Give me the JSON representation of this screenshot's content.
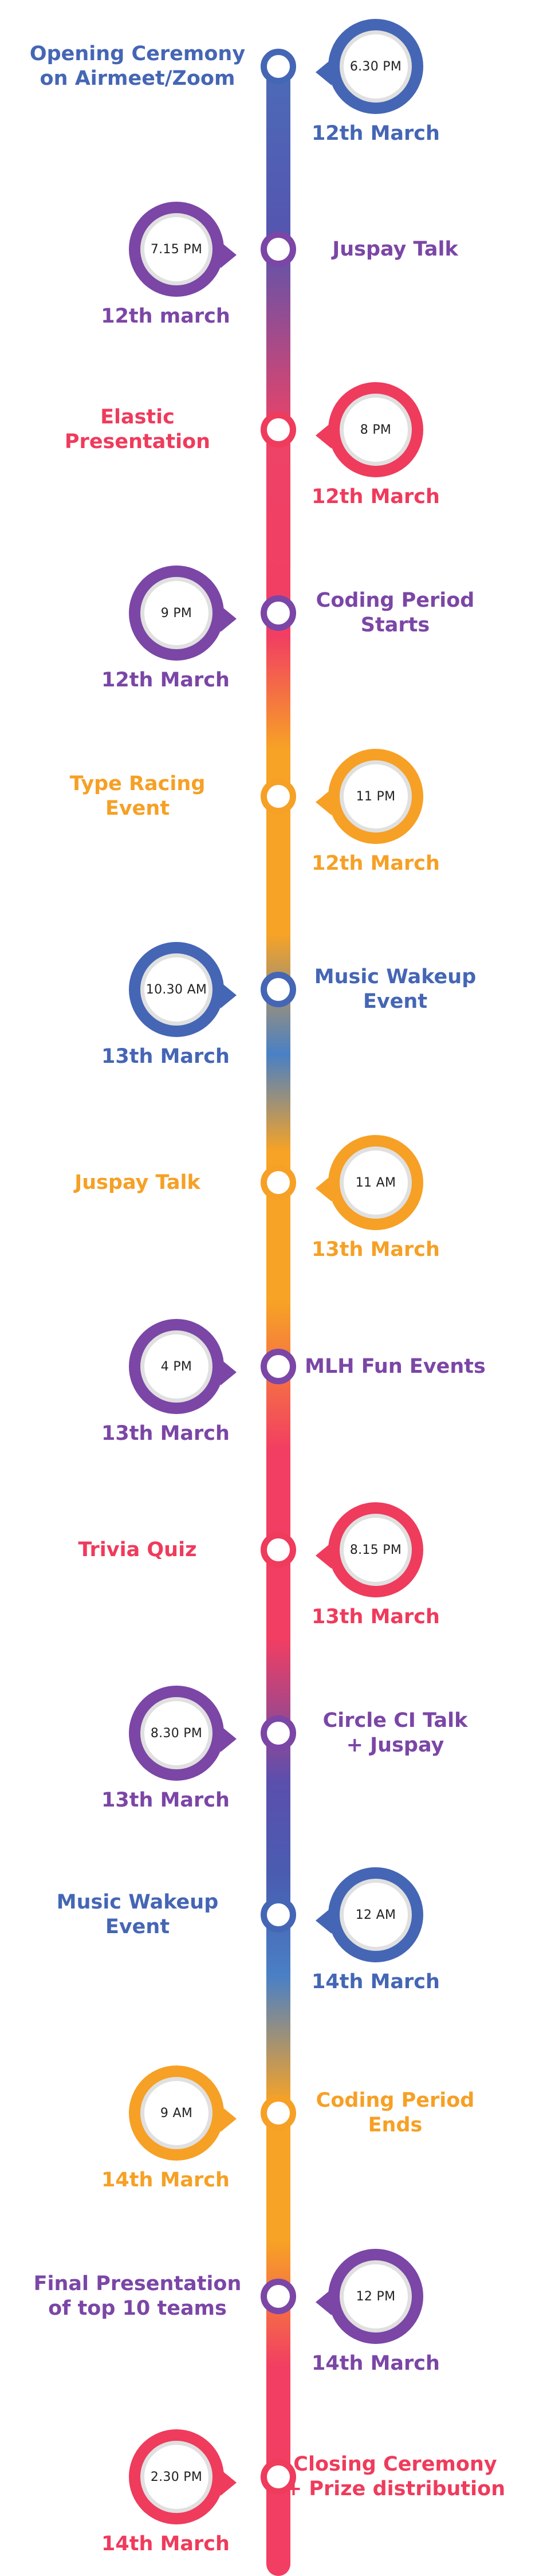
{
  "events": [
    {
      "title": "Opening Ceremony\non Airmeet/Zoom",
      "time": "6.30 PM",
      "date": "12th March",
      "color": "#4566b5"
    },
    {
      "title": "Juspay Talk",
      "time": "7.15 PM",
      "date": "12th march",
      "color": "#7b46a6"
    },
    {
      "title": "Elastic\nPresentation",
      "time": "8 PM",
      "date": "12th March",
      "color": "#ef3b5c"
    },
    {
      "title": "Coding Period\nStarts",
      "time": "9 PM",
      "date": "12th March",
      "color": "#7b46a6"
    },
    {
      "title": "Type Racing\nEvent",
      "time": "11 PM",
      "date": "12th March",
      "color": "#f6a025"
    },
    {
      "title": "Music Wakeup\nEvent",
      "time": "10.30 AM",
      "date": "13th March",
      "color": "#4566b5"
    },
    {
      "title": "Juspay Talk",
      "time": "11 AM",
      "date": "13th March",
      "color": "#f6a025"
    },
    {
      "title": "MLH Fun Events",
      "time": "4 PM",
      "date": "13th March",
      "color": "#7b46a6"
    },
    {
      "title": "Trivia Quiz",
      "time": "8.15 PM",
      "date": "13th March",
      "color": "#ef3b5c"
    },
    {
      "title": "Circle CI Talk\n+ Juspay",
      "time": "8.30 PM",
      "date": "13th March",
      "color": "#7b46a6"
    },
    {
      "title": "Music Wakeup\nEvent",
      "time": "12 AM",
      "date": "14th March",
      "color": "#4566b5"
    },
    {
      "title": "Coding Period\nEnds",
      "time": "9 AM",
      "date": "14th March",
      "color": "#f6a025"
    },
    {
      "title": "Final Presentation\nof top 10 teams",
      "time": "12 PM",
      "date": "14th March",
      "color": "#7b46a6"
    },
    {
      "title": "Closing Ceremony\n+ Prize distribution",
      "time": "2.30 PM",
      "date": "14th March",
      "color": "#ef3b5c"
    }
  ]
}
